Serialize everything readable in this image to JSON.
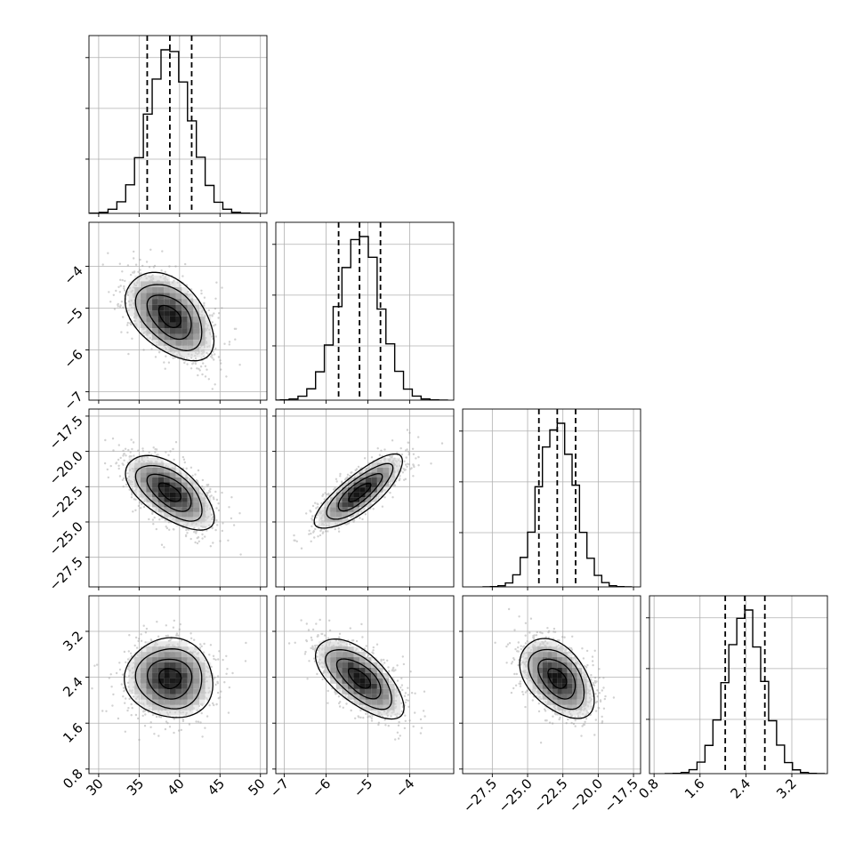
{
  "chart_data": {
    "type": "corner",
    "parameters": [
      {
        "mean": 38.8,
        "sd": 2.6,
        "q16": 36.0,
        "q50": 38.8,
        "q84": 41.5,
        "range": [
          28.8,
          50.8
        ],
        "ticks": [
          30,
          35,
          40,
          45,
          50
        ],
        "tick_labels": [
          "30",
          "35",
          "40",
          "45",
          "50"
        ]
      },
      {
        "mean": -5.2,
        "sd": 0.5,
        "q16": -5.7,
        "q50": -5.2,
        "q84": -4.7,
        "range": [
          -7.2,
          -2.95
        ],
        "ticks": [
          -7,
          -6,
          -5,
          -4
        ],
        "tick_labels": [
          "−7",
          "−6",
          "−5",
          "−4"
        ]
      },
      {
        "mean": -22.9,
        "sd": 1.25,
        "q16": -24.2,
        "q50": -22.9,
        "q84": -21.6,
        "range": [
          -29.6,
          -17.0
        ],
        "ticks": [
          -27.5,
          -25.0,
          -22.5,
          -20.0,
          -17.5
        ],
        "tick_labels": [
          "−27.5",
          "−25.0",
          "−22.5",
          "−20.0",
          "−17.5"
        ]
      },
      {
        "mean": 2.38,
        "sd": 0.33,
        "q16": 2.04,
        "q50": 2.38,
        "q84": 2.73,
        "range": [
          0.72,
          3.82
        ],
        "ticks": [
          0.8,
          1.6,
          2.4,
          3.2
        ],
        "tick_labels": [
          "0.8",
          "1.6",
          "2.4",
          "3.2"
        ]
      }
    ],
    "correlations": [
      {
        "i": 1,
        "j": 0,
        "r": -0.45
      },
      {
        "i": 2,
        "j": 0,
        "r": -0.6
      },
      {
        "i": 2,
        "j": 1,
        "r": 0.8
      },
      {
        "i": 3,
        "j": 0,
        "r": -0.05
      },
      {
        "i": 3,
        "j": 1,
        "r": -0.65
      },
      {
        "i": 3,
        "j": 2,
        "r": -0.45
      }
    ],
    "histogram_bins": 20,
    "contour_levels_sigma": [
      0.5,
      1.0,
      1.5,
      2.0
    ],
    "grid": true,
    "colors": {
      "line": "#000000",
      "scatter": "#9a9a9a",
      "grid": "#b0b0b0",
      "frame": "#000000"
    }
  }
}
